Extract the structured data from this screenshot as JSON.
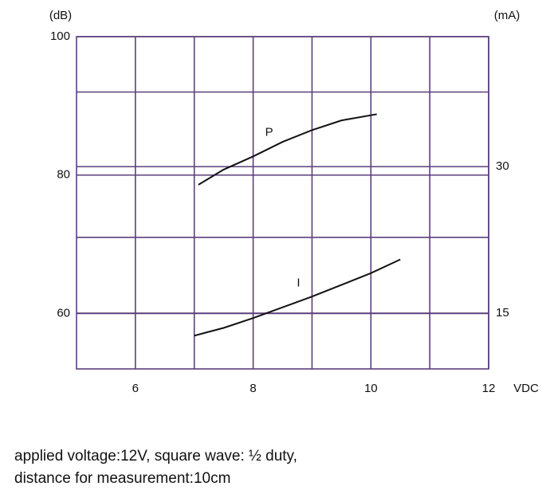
{
  "chart_data": {
    "type": "line",
    "y_unit_label": "(dB)",
    "y2_unit_label": "(mA)",
    "x_unit_label": "VDC",
    "xlim": [
      5,
      12
    ],
    "xticks": [
      6,
      8,
      10,
      12
    ],
    "x_minor_grid": [
      7,
      9,
      11
    ],
    "ylim": [
      52,
      100
    ],
    "yticks": [
      60,
      80,
      100
    ],
    "y_minor_grid": [
      71,
      92
    ],
    "y2lim": [
      9.3,
      43.3
    ],
    "y2ticks": [
      15,
      30
    ],
    "grid": true,
    "grid_color": "#5b3f7c",
    "series": [
      {
        "name": "P",
        "color": "#111111",
        "x": [
          7.07,
          7.5,
          8,
          8.5,
          9,
          9.5,
          10.1
        ],
        "values": [
          78.6,
          80.8,
          82.7,
          84.8,
          86.5,
          87.9,
          88.8
        ]
      },
      {
        "name": "I",
        "color": "#111111",
        "axis": "y2",
        "x": [
          7.0,
          7.5,
          8,
          8.5,
          9,
          9.5,
          10,
          10.5
        ],
        "values": [
          12.7,
          13.5,
          14.5,
          15.6,
          16.7,
          17.9,
          19.1,
          20.5
        ]
      }
    ],
    "notes": [
      "applied voltage:12V, square wave: ½ duty,",
      "distance for measurement:10cm"
    ]
  }
}
